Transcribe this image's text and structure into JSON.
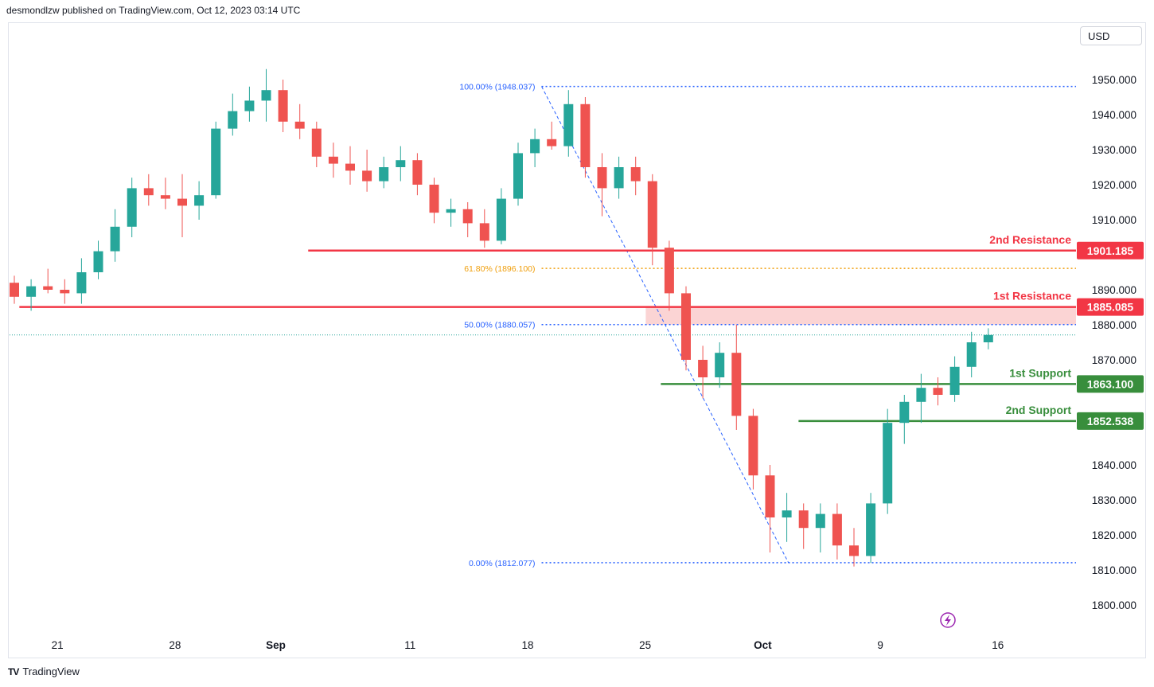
{
  "header": {
    "published_by": "desmondlzw published on TradingView.com, Oct 12, 2023 03:14 UTC"
  },
  "currency": "USD",
  "footer": {
    "brand": "TradingView",
    "logo_icon": "tradingview-logo-icon"
  },
  "colors": {
    "up": "#26a69a",
    "down": "#ef5350",
    "resistance": "#f23645",
    "support": "#388e3c",
    "fib": "#2962ff",
    "fib618": "#f09e0a",
    "zone": "#fbd4d4"
  },
  "chart_data": {
    "type": "candlestick",
    "price_axis": {
      "ticks": [
        1800,
        1810,
        1820,
        1830,
        1840,
        1850,
        1860,
        1870,
        1880,
        1890,
        1900,
        1910,
        1920,
        1930,
        1940,
        1950
      ],
      "tick_labels": [
        "1800.000",
        "1810.000",
        "1820.000",
        "1830.000",
        "1840.000",
        "",
        "",
        "1870.000",
        "1880.000",
        "1890.000",
        "",
        "1910.000",
        "1920.000",
        "1930.000",
        "1940.000",
        "1950.000"
      ]
    },
    "time_axis": {
      "labels": [
        "21",
        "28",
        "Sep",
        "11",
        "18",
        "25",
        "Oct",
        "9",
        "16"
      ],
      "bold": [
        "Sep",
        "Oct"
      ]
    },
    "levels": [
      {
        "name": "2nd Resistance",
        "value": 1901.185,
        "label": "1901.185",
        "kind": "resistance",
        "from_day": 17.5
      },
      {
        "name": "1st Resistance",
        "value": 1885.085,
        "label": "1885.085",
        "kind": "resistance",
        "from_day": 0.3
      },
      {
        "name": "1st Support",
        "value": 1863.1,
        "label": "1863.100",
        "kind": "support",
        "from_day": 38.5
      },
      {
        "name": "2nd Support",
        "value": 1852.538,
        "label": "1852.538",
        "kind": "support",
        "from_day": 46.7
      }
    ],
    "fibonacci": [
      {
        "ratio": "100.00%",
        "value": 1948.037,
        "label": "100.00% (1948.037)",
        "color": "fib"
      },
      {
        "ratio": "61.80%",
        "value": 1896.1,
        "label": "61.80% (1896.100)",
        "color": "fib618"
      },
      {
        "ratio": "50.00%",
        "value": 1880.057,
        "label": "50.00% (1880.057)",
        "color": "fib"
      },
      {
        "ratio": "0.00%",
        "value": 1812.077,
        "label": "0.00% (1812.077)",
        "color": "fib"
      }
    ],
    "fib_trend": {
      "from": {
        "day": 31.4,
        "price": 1948.037
      },
      "to": {
        "day": 46.1,
        "price": 1812.077
      }
    },
    "resistance_zone": {
      "low": 1880.057,
      "high": 1885.085,
      "from_day": 37.6
    },
    "last_price_line": 1877.1,
    "daily_ohlc": [
      [
        1892,
        1894,
        1886,
        1888
      ],
      [
        1888,
        1893,
        1884,
        1891
      ],
      [
        1891,
        1896,
        1889,
        1890
      ],
      [
        1890,
        1893,
        1886,
        1889
      ],
      [
        1889,
        1899,
        1886,
        1895
      ],
      [
        1895,
        1904,
        1893,
        1901
      ],
      [
        1901,
        1913,
        1898,
        1908
      ],
      [
        1908,
        1922,
        1905,
        1919
      ],
      [
        1919,
        1923,
        1914,
        1917
      ],
      [
        1917,
        1922,
        1913,
        1916
      ],
      [
        1916,
        1923,
        1905,
        1914
      ],
      [
        1914,
        1921,
        1910,
        1917
      ],
      [
        1917,
        1938,
        1916,
        1936
      ],
      [
        1936,
        1946,
        1934,
        1941
      ],
      [
        1941,
        1948,
        1938,
        1944
      ],
      [
        1944,
        1953,
        1938,
        1947
      ],
      [
        1947,
        1950,
        1935,
        1938
      ],
      [
        1938,
        1943,
        1933,
        1936
      ],
      [
        1936,
        1938,
        1925,
        1928
      ],
      [
        1928,
        1932,
        1922,
        1926
      ],
      [
        1926,
        1931,
        1920,
        1924
      ],
      [
        1924,
        1930,
        1918,
        1921
      ],
      [
        1921,
        1928,
        1919,
        1925
      ],
      [
        1925,
        1931,
        1921,
        1927
      ],
      [
        1927,
        1929,
        1917,
        1920
      ],
      [
        1920,
        1922,
        1909,
        1912
      ],
      [
        1912,
        1916,
        1908,
        1913
      ],
      [
        1913,
        1915,
        1905,
        1909
      ],
      [
        1909,
        1913,
        1902,
        1904
      ],
      [
        1904,
        1919,
        1903,
        1916
      ],
      [
        1916,
        1932,
        1914,
        1929
      ],
      [
        1929,
        1936,
        1925,
        1933
      ],
      [
        1933,
        1938,
        1930,
        1931
      ],
      [
        1931,
        1947,
        1928,
        1943
      ],
      [
        1943,
        1945,
        1922,
        1925
      ],
      [
        1925,
        1929,
        1911,
        1919
      ],
      [
        1919,
        1928,
        1916,
        1925
      ],
      [
        1925,
        1928,
        1917,
        1921
      ],
      [
        1921,
        1923,
        1897,
        1902
      ],
      [
        1902,
        1904,
        1884,
        1889
      ],
      [
        1889,
        1891,
        1867,
        1870
      ],
      [
        1870,
        1874,
        1859,
        1865
      ],
      [
        1865,
        1875,
        1862,
        1872
      ],
      [
        1872,
        1880,
        1850,
        1854
      ],
      [
        1854,
        1856,
        1833,
        1837
      ],
      [
        1837,
        1840,
        1815,
        1825
      ],
      [
        1825,
        1832,
        1818,
        1827
      ],
      [
        1827,
        1829,
        1816,
        1822
      ],
      [
        1822,
        1829,
        1815,
        1826
      ],
      [
        1826,
        1829,
        1813,
        1817
      ],
      [
        1817,
        1822,
        1811,
        1814
      ],
      [
        1814,
        1832,
        1812,
        1829
      ],
      [
        1829,
        1856,
        1826,
        1852
      ],
      [
        1852,
        1860,
        1846,
        1858
      ],
      [
        1858,
        1866,
        1852,
        1862
      ],
      [
        1862,
        1865,
        1857,
        1860
      ],
      [
        1860,
        1871,
        1858,
        1868
      ],
      [
        1868,
        1878,
        1865,
        1875
      ],
      [
        1875,
        1879,
        1873,
        1877.1
      ]
    ]
  }
}
